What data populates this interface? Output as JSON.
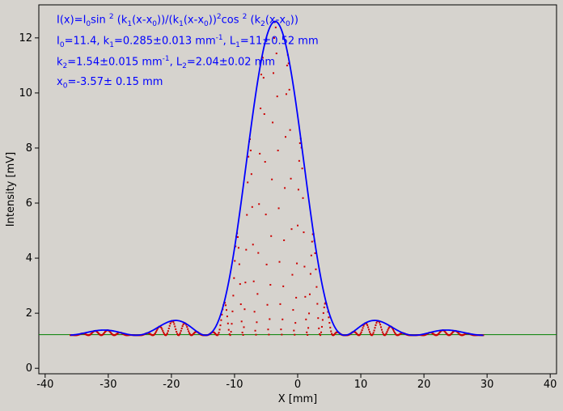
{
  "chart_data": {
    "type": "scatter",
    "xlabel": "X [mm]",
    "ylabel": "Intensity [mV]",
    "xlim": [
      -41,
      41
    ],
    "ylim": [
      -0.2,
      13.2
    ],
    "xticks": [
      -40,
      -30,
      -20,
      -10,
      0,
      10,
      20,
      30,
      40
    ],
    "yticks": [
      0,
      2,
      4,
      6,
      8,
      10,
      12
    ],
    "grid": false,
    "colors": {
      "fit_curve": "#0000ff",
      "points": "#cc0000",
      "baseline": "#008000",
      "annotation": "#0000ff",
      "background": "#d6d3ce"
    },
    "model": {
      "I0": 11.4,
      "k1": 0.285,
      "k2": 1.54,
      "x0": -3.57,
      "offset": 1.2,
      "x_range": [
        -36,
        29.5
      ],
      "baseline_range": [
        -41,
        41
      ],
      "baseline_value": 1.22
    },
    "annotations": {
      "formula": {
        "a": "I(x)=I",
        "b": "0",
        "c": "sin ",
        "d": "2",
        "e": " (k",
        "f": "1",
        "g": "(x-x",
        "h": "0",
        "i": "))/(k",
        "j": "1",
        "k": "(x-x",
        "l": "0",
        "m": "))",
        "n": "2",
        "o": "cos ",
        "p": "2",
        "q": " (k",
        "r": "2",
        "s": "(x-x",
        "t": "0",
        "u": "))"
      },
      "line2": {
        "a": "I",
        "b": "0",
        "c": "=11.4,  k",
        "d": "1",
        "e": "=0.285±0.013 mm",
        "f": "-1",
        "g": ",   L",
        "h": "1",
        "i": "=11±0.52 mm"
      },
      "line3": {
        "a": "k",
        "b": "2",
        "c": "=1.54±0.015 mm",
        "d": "-1",
        "e": ",   L",
        "f": "2",
        "g": "=2.04±0.02 mm"
      },
      "line4": {
        "a": "x",
        "b": "0",
        "c": "=-3.57±   0.15 mm"
      }
    }
  }
}
